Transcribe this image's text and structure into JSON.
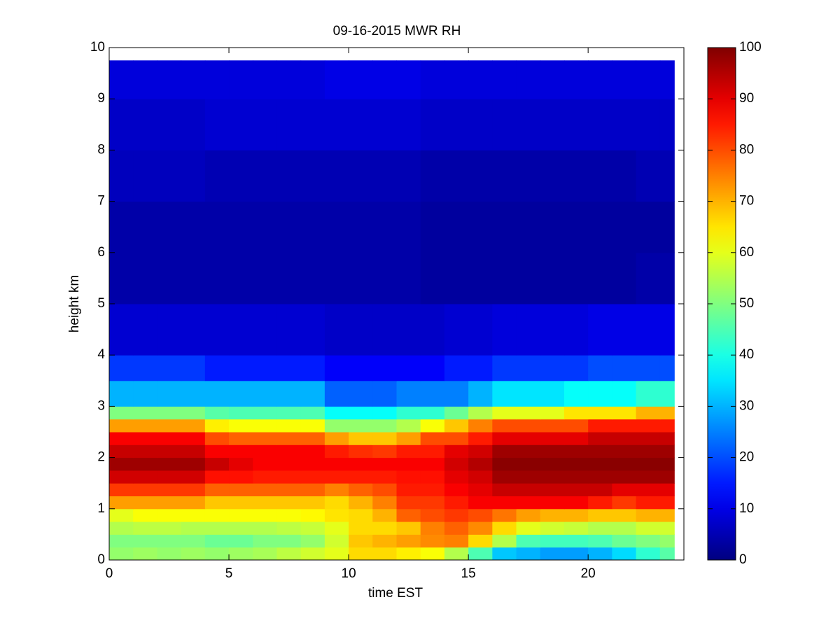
{
  "chart_data": {
    "type": "heatmap",
    "title": "09-16-2015 MWR RH",
    "x_label": "time EST",
    "y_label": "height km",
    "colormap": "jet",
    "clim": [
      0,
      100
    ],
    "cticks": [
      0,
      10,
      20,
      30,
      40,
      50,
      60,
      70,
      80,
      90,
      100
    ],
    "xlim": [
      0,
      24
    ],
    "xticks": [
      0,
      5,
      10,
      15,
      20
    ],
    "ylim": [
      0,
      10
    ],
    "yticks": [
      0,
      1,
      2,
      3,
      4,
      5,
      6,
      7,
      8,
      9,
      10
    ],
    "x_edges": [
      0,
      1,
      2,
      3,
      4,
      5,
      6,
      7,
      8,
      9,
      10,
      11,
      12,
      13,
      14,
      15,
      16,
      17,
      18,
      19,
      20,
      21,
      22,
      23,
      23.6
    ],
    "y_edges": [
      0,
      0.25,
      0.5,
      0.75,
      1,
      1.25,
      1.5,
      1.75,
      2,
      2.25,
      2.5,
      2.75,
      3,
      3.5,
      4,
      5,
      6,
      7,
      8,
      9,
      9.75
    ],
    "values": [
      [
        52,
        53,
        52,
        53,
        52,
        53,
        54,
        56,
        58,
        60,
        66,
        66,
        64,
        62,
        55,
        45,
        32,
        30,
        28,
        28,
        30,
        34,
        42,
        46
      ],
      [
        50,
        50,
        50,
        50,
        48,
        48,
        50,
        50,
        52,
        58,
        68,
        70,
        72,
        74,
        75,
        66,
        55,
        45,
        44,
        44,
        45,
        48,
        50,
        52
      ],
      [
        55,
        56,
        56,
        55,
        55,
        55,
        55,
        56,
        57,
        60,
        66,
        66,
        68,
        75,
        78,
        74,
        66,
        60,
        58,
        57,
        55,
        55,
        58,
        58
      ],
      [
        60,
        62,
        62,
        62,
        62,
        62,
        62,
        62,
        63,
        65,
        66,
        70,
        78,
        80,
        82,
        80,
        76,
        72,
        70,
        70,
        68,
        68,
        70,
        70
      ],
      [
        72,
        72,
        72,
        72,
        68,
        68,
        68,
        68,
        68,
        66,
        70,
        75,
        82,
        82,
        85,
        88,
        88,
        88,
        88,
        88,
        85,
        82,
        85,
        85
      ],
      [
        82,
        82,
        82,
        82,
        78,
        78,
        78,
        78,
        78,
        75,
        78,
        80,
        85,
        85,
        88,
        90,
        93,
        93,
        93,
        93,
        93,
        90,
        90,
        90
      ],
      [
        92,
        92,
        92,
        92,
        86,
        86,
        85,
        85,
        85,
        85,
        85,
        85,
        86,
        86,
        90,
        92,
        97,
        97,
        97,
        97,
        97,
        97,
        97,
        97
      ],
      [
        97,
        97,
        97,
        97,
        93,
        90,
        88,
        88,
        88,
        88,
        88,
        88,
        88,
        88,
        92,
        95,
        99,
        99,
        99,
        99,
        99,
        99,
        99,
        99
      ],
      [
        93,
        93,
        93,
        93,
        88,
        88,
        88,
        88,
        88,
        85,
        83,
        82,
        85,
        85,
        90,
        92,
        97,
        97,
        97,
        97,
        97,
        97,
        97,
        97
      ],
      [
        88,
        88,
        88,
        88,
        80,
        78,
        78,
        78,
        78,
        72,
        68,
        68,
        72,
        80,
        80,
        85,
        90,
        90,
        90,
        90,
        93,
        93,
        93,
        93
      ],
      [
        72,
        72,
        72,
        72,
        64,
        62,
        62,
        62,
        62,
        52,
        52,
        52,
        55,
        62,
        68,
        75,
        80,
        80,
        80,
        80,
        85,
        85,
        85,
        85
      ],
      [
        50,
        50,
        50,
        50,
        46,
        45,
        45,
        45,
        45,
        38,
        38,
        38,
        42,
        42,
        48,
        55,
        60,
        60,
        60,
        65,
        65,
        65,
        70,
        70
      ],
      [
        30,
        30,
        30,
        30,
        30,
        30,
        30,
        30,
        30,
        22,
        22,
        22,
        25,
        25,
        25,
        30,
        35,
        35,
        35,
        38,
        38,
        38,
        42,
        42
      ],
      [
        18,
        18,
        18,
        18,
        15,
        15,
        15,
        15,
        15,
        12,
        12,
        12,
        12,
        12,
        15,
        15,
        18,
        18,
        18,
        18,
        20,
        20,
        20,
        20
      ],
      [
        8,
        8,
        8,
        8,
        8,
        8,
        8,
        8,
        8,
        7,
        7,
        7,
        7,
        7,
        8,
        8,
        9,
        9,
        9,
        9,
        10,
        10,
        10,
        10
      ],
      [
        4,
        4,
        4,
        4,
        4,
        4,
        4,
        4,
        4,
        4,
        4,
        4,
        4,
        3,
        3,
        3,
        3,
        3,
        3,
        3,
        3,
        3,
        4,
        4
      ],
      [
        4,
        4,
        4,
        4,
        4,
        4,
        4,
        4,
        4,
        4,
        4,
        4,
        4,
        3,
        3,
        3,
        3,
        3,
        3,
        3,
        3,
        3,
        3,
        3
      ],
      [
        6,
        6,
        6,
        6,
        5,
        5,
        5,
        5,
        5,
        5,
        5,
        5,
        5,
        4,
        4,
        4,
        4,
        4,
        4,
        4,
        4,
        4,
        5,
        5
      ],
      [
        7,
        7,
        7,
        7,
        8,
        8,
        8,
        8,
        8,
        8,
        8,
        8,
        8,
        7,
        7,
        7,
        7,
        7,
        7,
        7,
        7,
        7,
        7,
        7
      ],
      [
        9,
        9,
        9,
        9,
        9,
        9,
        9,
        9,
        9,
        10,
        10,
        10,
        10,
        9,
        9,
        9,
        9,
        9,
        9,
        9,
        9,
        9,
        9,
        9
      ]
    ]
  }
}
